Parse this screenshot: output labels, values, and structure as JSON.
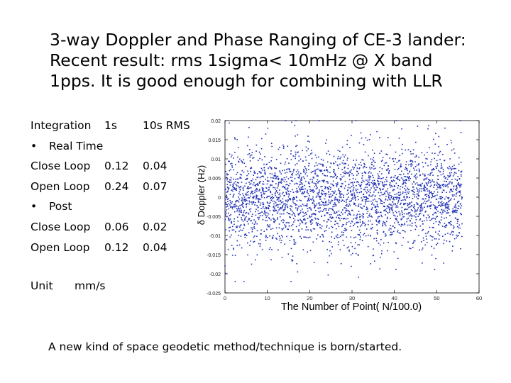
{
  "slide": {
    "title_lines": [
      "3-way Doppler and Phase Ranging of CE-3 lander:",
      "Recent result:   rms  1sigma< 10mHz @ X band",
      "1pps.   It is good enough for combining with LLR"
    ],
    "table": {
      "header": [
        "Integration",
        "1s",
        "10s  RMS"
      ],
      "rows": [
        {
          "bullet": "•",
          "cells": [
            "Real Time",
            "",
            ""
          ]
        },
        {
          "bullet": "",
          "cells": [
            "Close Loop",
            "0.12",
            "0.04"
          ]
        },
        {
          "bullet": "",
          "cells": [
            "Open Loop",
            "0.24",
            "0.07"
          ]
        },
        {
          "bullet": "•",
          "cells": [
            "Post",
            "",
            ""
          ]
        },
        {
          "bullet": "",
          "cells": [
            "Close Loop",
            "0.06",
            "0.02"
          ]
        },
        {
          "bullet": "",
          "cells": [
            "Open Loop",
            "0.12",
            "0.04"
          ]
        }
      ]
    },
    "unit_label": "Unit",
    "unit_value": "mm/s",
    "footer": "A new kind of space geodetic method/technique is born/started."
  },
  "chart_data": {
    "type": "scatter",
    "xlabel": "The Number of Point( N/100.0)",
    "ylabel": "δ Doppler (Hz)",
    "xlim": [
      0,
      60
    ],
    "ylim": [
      -0.025,
      0.02
    ],
    "xticks": [
      0,
      10,
      20,
      30,
      40,
      50,
      60
    ],
    "yticks": [
      -0.025,
      -0.02,
      -0.015,
      -0.01,
      -0.005,
      0,
      0.005,
      0.01,
      0.015,
      0.02
    ],
    "ytick_labels": [
      "-0.025",
      "-0.02",
      "-0.015",
      "-0.01",
      "-0.005",
      "0",
      "0.005",
      "0.01",
      "0.015",
      "0.02"
    ],
    "marker_color": "#1f2fb4",
    "distribution": {
      "count": 3000,
      "x_range": [
        0,
        56
      ],
      "mean": 0.0,
      "std": 0.0065,
      "clip": [
        -0.022,
        0.02
      ]
    }
  }
}
